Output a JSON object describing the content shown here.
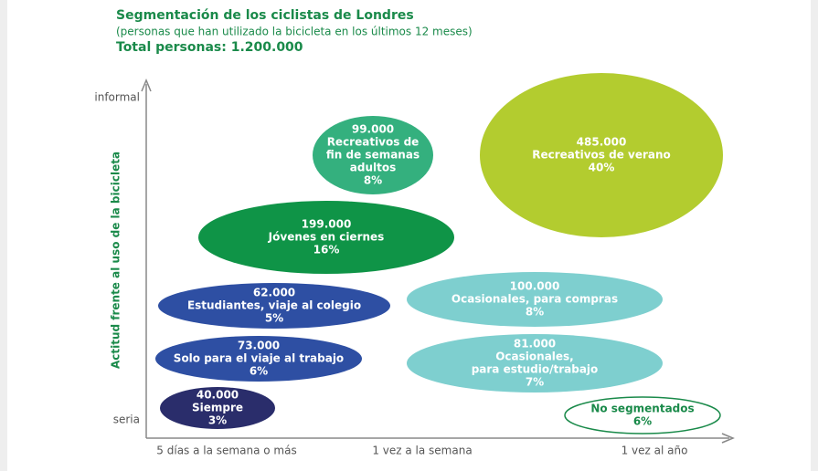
{
  "header": {
    "title": "Segmentación de los ciclistas de Londres",
    "subtitle": "(personas que han utilizado la bicicleta en los últimos 12 meses)",
    "total": "Total personas: 1.200.000"
  },
  "axes": {
    "y_label": "Actitud frente al uso de la bicicleta",
    "y_top": "informal",
    "y_bottom": "seria",
    "x_labels": [
      "5 días a la semana o más",
      "1 vez a la semana",
      "1 vez al año"
    ]
  },
  "nodes": [
    {
      "count": "99.000",
      "lines": [
        "Recreativos de",
        "fin de semanas",
        "adultos"
      ],
      "share": "8%"
    },
    {
      "count": "485.000",
      "lines": [
        "Recreativos de verano"
      ],
      "share": "40%"
    },
    {
      "count": "199.000",
      "lines": [
        "Jóvenes en ciernes"
      ],
      "share": "16%"
    },
    {
      "count": "62.000",
      "lines": [
        "Estudiantes, viaje al colegio"
      ],
      "share": "5%"
    },
    {
      "count": "100.000",
      "lines": [
        "Ocasionales, para compras"
      ],
      "share": "8%"
    },
    {
      "count": "73.000",
      "lines": [
        "Solo para el viaje al trabajo"
      ],
      "share": "6%"
    },
    {
      "count": "81.000",
      "lines": [
        "Ocasionales,",
        "para estudio/trabajo"
      ],
      "share": "7%"
    },
    {
      "count": "40.000",
      "lines": [
        "Siempre"
      ],
      "share": "3%"
    },
    {
      "lines": [
        "No segmentados"
      ],
      "share": "6%"
    }
  ]
}
